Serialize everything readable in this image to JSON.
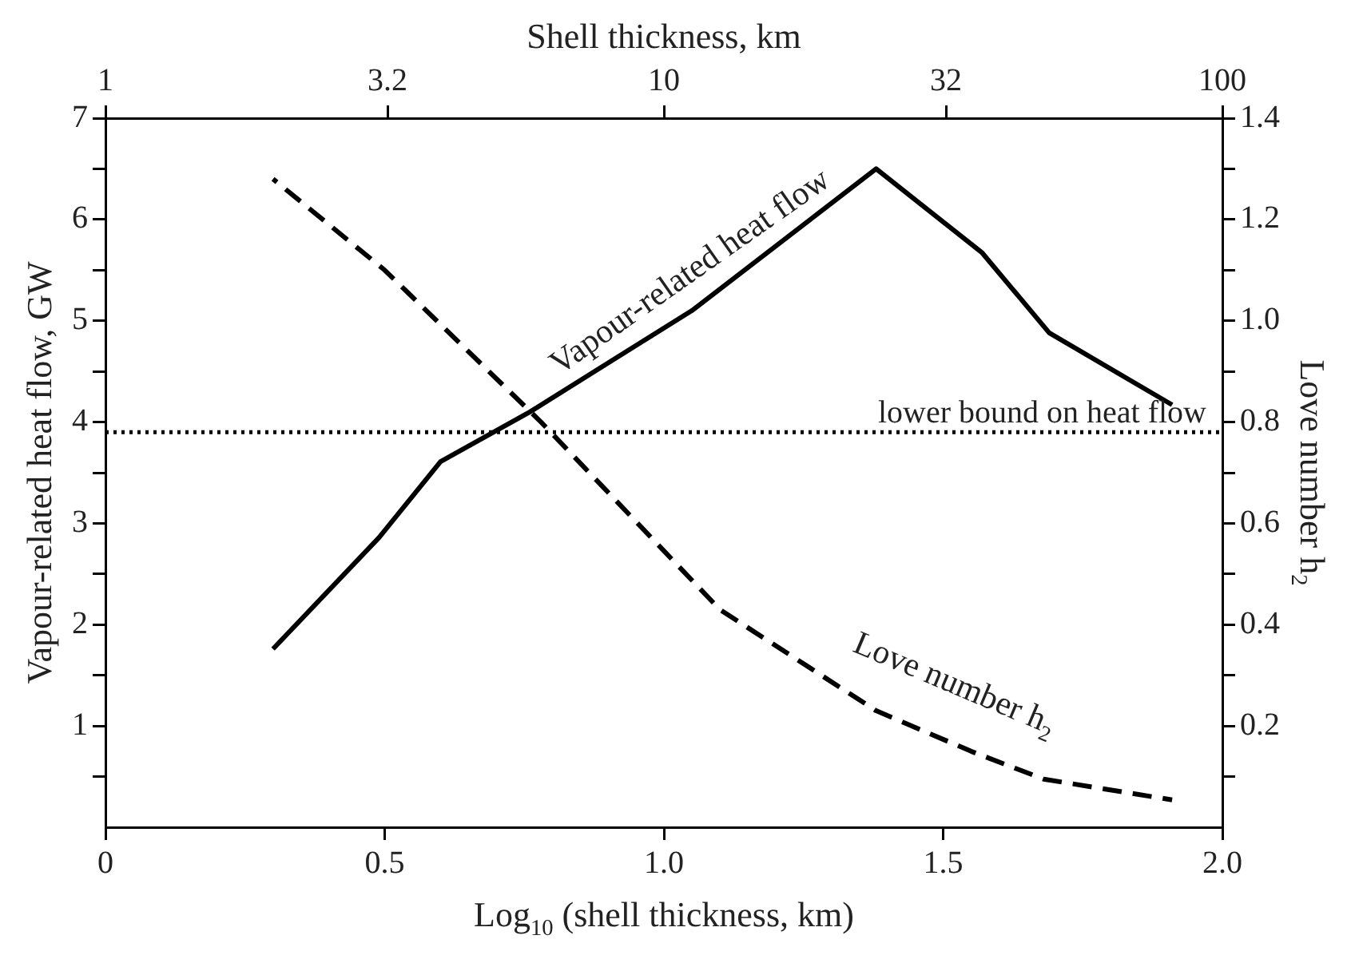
{
  "chart_data": {
    "type": "line",
    "xlabel": "Log$_{10}$ (shell thickness, km)",
    "ylabel": "Vapour-related heat flow, GW",
    "y2label": "Love number h$_{2}$",
    "x2label": "Shell thickness, km",
    "xlim": [
      0,
      2
    ],
    "xticks": [
      0,
      0.5,
      {
        "value": 1,
        "label": "1.0"
      },
      1.5,
      {
        "value": 2,
        "label": "2.0"
      }
    ],
    "x2lim": [
      1,
      100
    ],
    "x2ticks": [
      1,
      3.2,
      10,
      32,
      100
    ],
    "log": "x2",
    "ylim": [
      0,
      7
    ],
    "yticks": [
      {
        "value": 0.5,
        "label": null
      },
      1,
      {
        "value": 1.5,
        "label": null
      },
      2,
      {
        "value": 2.5,
        "label": null
      },
      3,
      {
        "value": 3.5,
        "label": null
      },
      4,
      {
        "value": 4.5,
        "label": null
      },
      5,
      {
        "value": 5.5,
        "label": null
      },
      6,
      {
        "value": 6.5,
        "label": null
      },
      7
    ],
    "y2lim": [
      0,
      1.4
    ],
    "y2ticks": [
      {
        "value": 0.1,
        "label": null
      },
      0.2,
      {
        "value": 0.3,
        "label": null
      },
      0.4,
      {
        "value": 0.5,
        "label": null
      },
      0.6,
      {
        "value": 0.7,
        "label": null
      },
      0.8,
      {
        "value": 0.9,
        "label": null
      },
      {
        "value": 1,
        "label": "1.0"
      },
      {
        "value": 1.1,
        "label": null
      },
      1.2,
      {
        "value": 1.3,
        "label": null
      },
      1.4
    ],
    "grid": false,
    "legend": false,
    "marker": "none",
    "ref_lines": [
      {
        "axis": "y",
        "value": 3.9,
        "label": "lower bound on heat flow",
        "line_style": "dotted",
        "color": "#000000"
      }
    ],
    "series": [
      {
        "name": "Vapour-related heat flow",
        "color": "#000000",
        "line_style": "solid",
        "x": [
          0.3,
          0.49,
          0.6,
          0.76,
          1.05,
          1.38,
          1.57,
          1.69,
          1.91
        ],
        "values": [
          1.76,
          2.86,
          3.61,
          4.1,
          5.1,
          6.5,
          5.67,
          4.88,
          4.17
        ]
      },
      {
        "name": "Love number h$_{2}$",
        "color": "#000000",
        "line_style": "dashed",
        "axis": "y2",
        "x": [
          0.3,
          0.5,
          0.78,
          1.1,
          1.38,
          1.55,
          1.68,
          1.91
        ],
        "values": [
          1.28,
          1.1,
          0.8,
          0.43,
          0.23,
          0.15,
          0.095,
          0.054
        ]
      }
    ]
  }
}
